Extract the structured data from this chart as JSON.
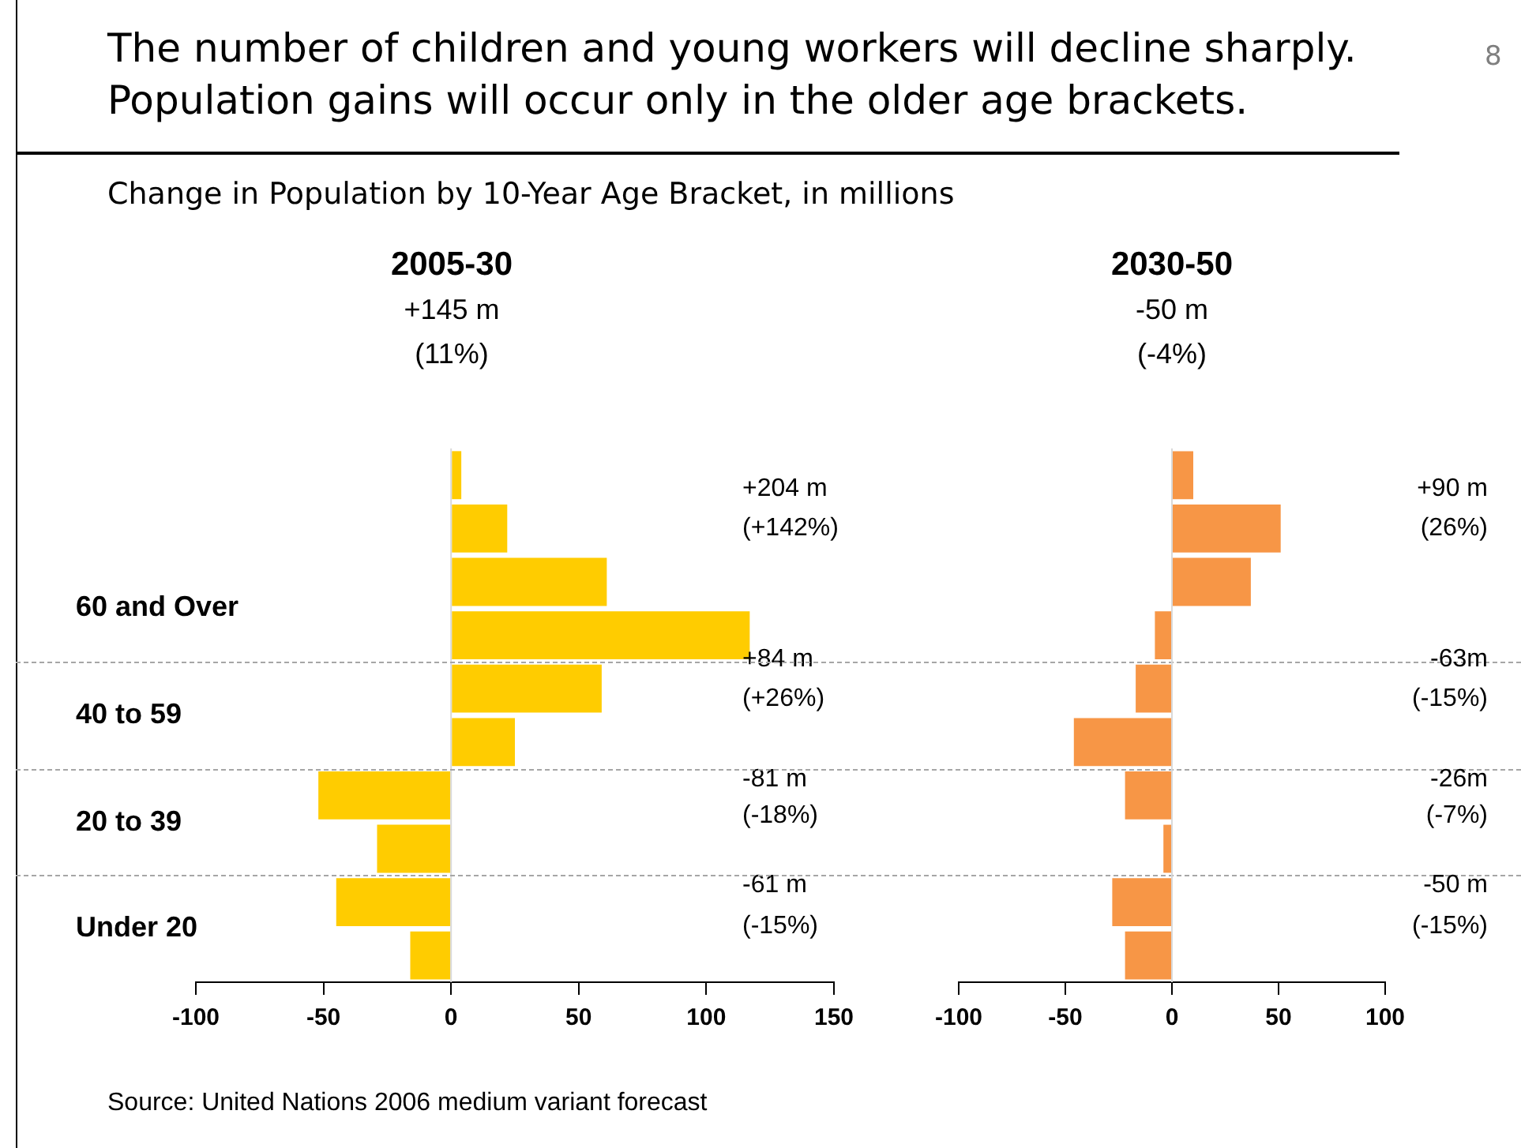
{
  "chart_data": [
    {
      "type": "other",
      "title": "The number of children and young workers will decline sharply. Population gains will occur only in the older age brackets.",
      "subtitle": "Change in Population by 10-Year Age Bracket, in millions",
      "annotations": [
        "Source: United Nations 2006 medium variant forecast",
        "8"
      ]
    },
    {
      "type": "bar",
      "orientation": "horizontal",
      "title": "2005-30",
      "subtitle": "+145 m",
      "categories": [
        null,
        null,
        null,
        null,
        null,
        null,
        null,
        null,
        null,
        null
      ],
      "values": [
        4,
        22,
        61,
        117,
        59,
        25,
        -52,
        -29,
        -45,
        -16
      ],
      "color": "#ffcc00",
      "xlim": [
        -100,
        150
      ],
      "xticks": [
        -100,
        -50,
        0,
        50,
        100,
        150
      ],
      "annotations": [
        "(11%)",
        "60 and Over",
        "40 to 59",
        "20 to 39",
        "Under 20",
        "+204 m",
        "(+142%)",
        "+84 m",
        "(+26%)",
        "-81 m",
        "(-18%)",
        "-61 m",
        "(-15%)"
      ]
    },
    {
      "type": "bar",
      "orientation": "horizontal",
      "title": "2030-50",
      "subtitle": "-50 m",
      "categories": [
        null,
        null,
        null,
        null,
        null,
        null,
        null,
        null,
        null,
        null
      ],
      "values": [
        10,
        51,
        37,
        -8,
        -17,
        -46,
        -22,
        -4,
        -28,
        -22
      ],
      "color": "#f79646",
      "xlim": [
        -100,
        100
      ],
      "xticks": [
        -100,
        -50,
        0,
        50,
        100
      ],
      "annotations": [
        "(-4%)",
        "+90 m",
        "(26%)",
        "-63m",
        "(-15%)",
        "-26m",
        "(-7%)",
        "-50 m",
        "(-15%)"
      ]
    }
  ]
}
